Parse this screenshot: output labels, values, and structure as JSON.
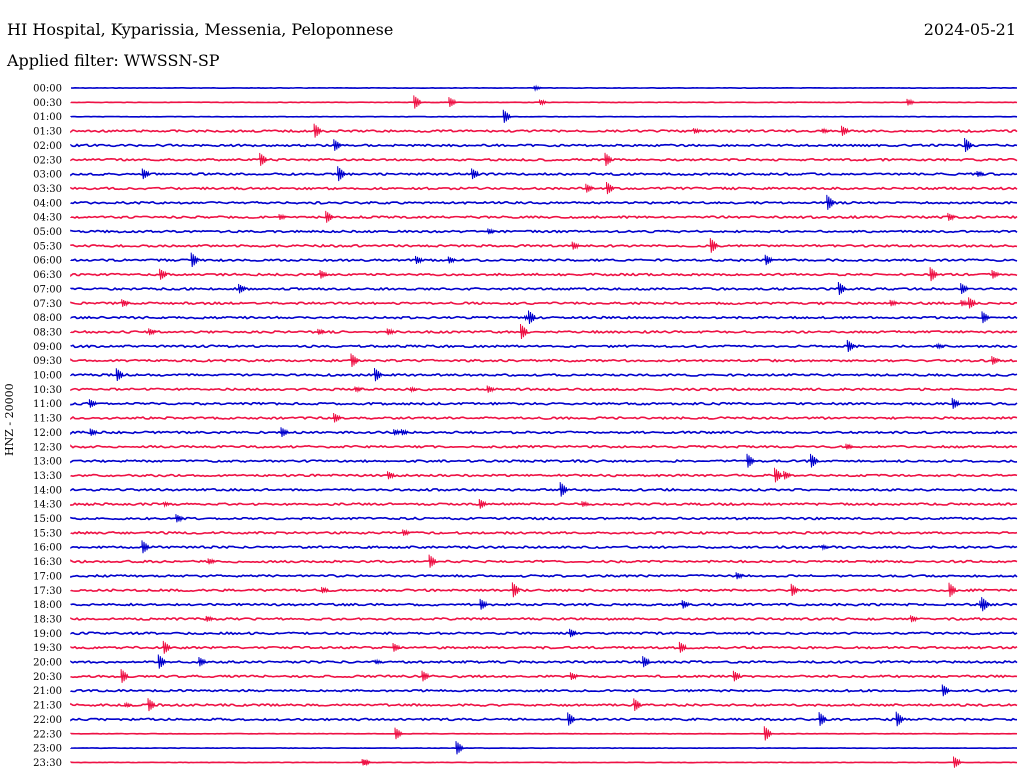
{
  "header": {
    "title": "HI Hospital, Kyparissia, Messenia, Peloponnese",
    "date": "2024-05-21",
    "filter": "Applied filter: WWSSN-SP"
  },
  "colors": {
    "even_row": "#0000cc",
    "odd_row": "#ee1144"
  },
  "chart_data": {
    "type": "line",
    "ylabel": "HNZ - 20000",
    "row_labels": [
      "00:00",
      "00:30",
      "01:00",
      "01:30",
      "02:00",
      "02:30",
      "03:00",
      "03:30",
      "04:00",
      "04:30",
      "05:00",
      "05:30",
      "06:00",
      "06:30",
      "07:00",
      "07:30",
      "08:00",
      "08:30",
      "09:00",
      "09:30",
      "10:00",
      "10:30",
      "11:00",
      "11:30",
      "12:00",
      "12:30",
      "13:00",
      "13:30",
      "14:00",
      "14:30",
      "15:00",
      "15:30",
      "16:00",
      "16:30",
      "17:00",
      "17:30",
      "18:00",
      "18:30",
      "19:00",
      "19:30",
      "20:00",
      "20:30",
      "21:00",
      "21:30",
      "22:00",
      "22:30",
      "23:00",
      "23:30"
    ]
  }
}
